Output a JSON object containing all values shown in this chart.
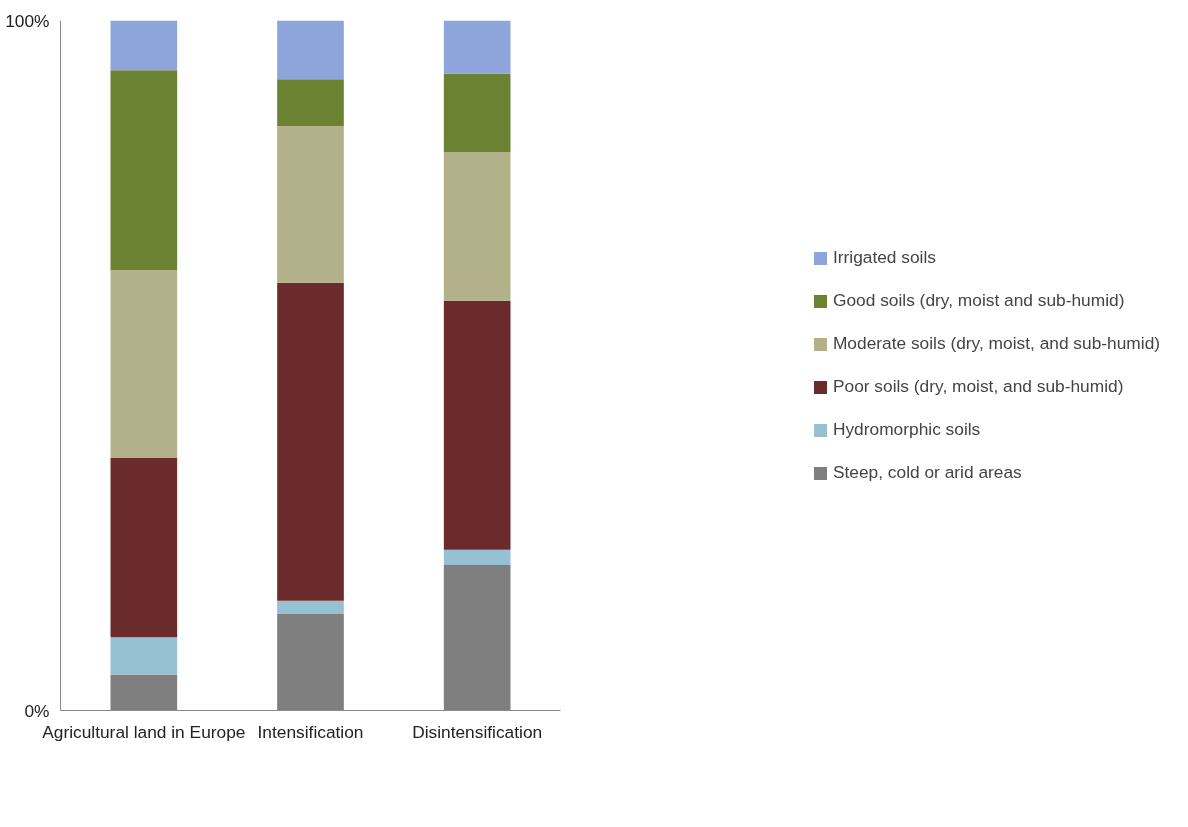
{
  "chart_data": {
    "type": "bar",
    "stacked": true,
    "categories": [
      "Agricultural land in Europe",
      "Intensification",
      "Disintensification"
    ],
    "series": [
      {
        "name": "Steep, cold or arid areas",
        "color": "#7f7f7f",
        "values": [
          5.2,
          14.0,
          21.1
        ]
      },
      {
        "name": "Hydromorphic soils",
        "color": "#96c1d3",
        "values": [
          5.4,
          1.9,
          2.2
        ]
      },
      {
        "name": "Poor soils (dry, moist, and sub-humid)",
        "color": "#6b2b2d",
        "values": [
          26.0,
          46.1,
          36.1
        ]
      },
      {
        "name": "Moderate soils (dry, moist, and sub-humid)",
        "color": "#b3b18a",
        "values": [
          27.2,
          22.7,
          21.5
        ]
      },
      {
        "name": "Good soils (dry, moist and sub-humid)",
        "color": "#6b8232",
        "values": [
          29.0,
          6.8,
          11.4
        ]
      },
      {
        "name": "Irrigated soils",
        "color": "#8ea5dc",
        "values": [
          7.2,
          8.5,
          7.7
        ]
      }
    ],
    "ylim": [
      0,
      100
    ],
    "yticks": [
      {
        "value": 0,
        "label": "0%"
      },
      {
        "value": 100,
        "label": "100%"
      }
    ],
    "grid": false,
    "legend": "right"
  }
}
